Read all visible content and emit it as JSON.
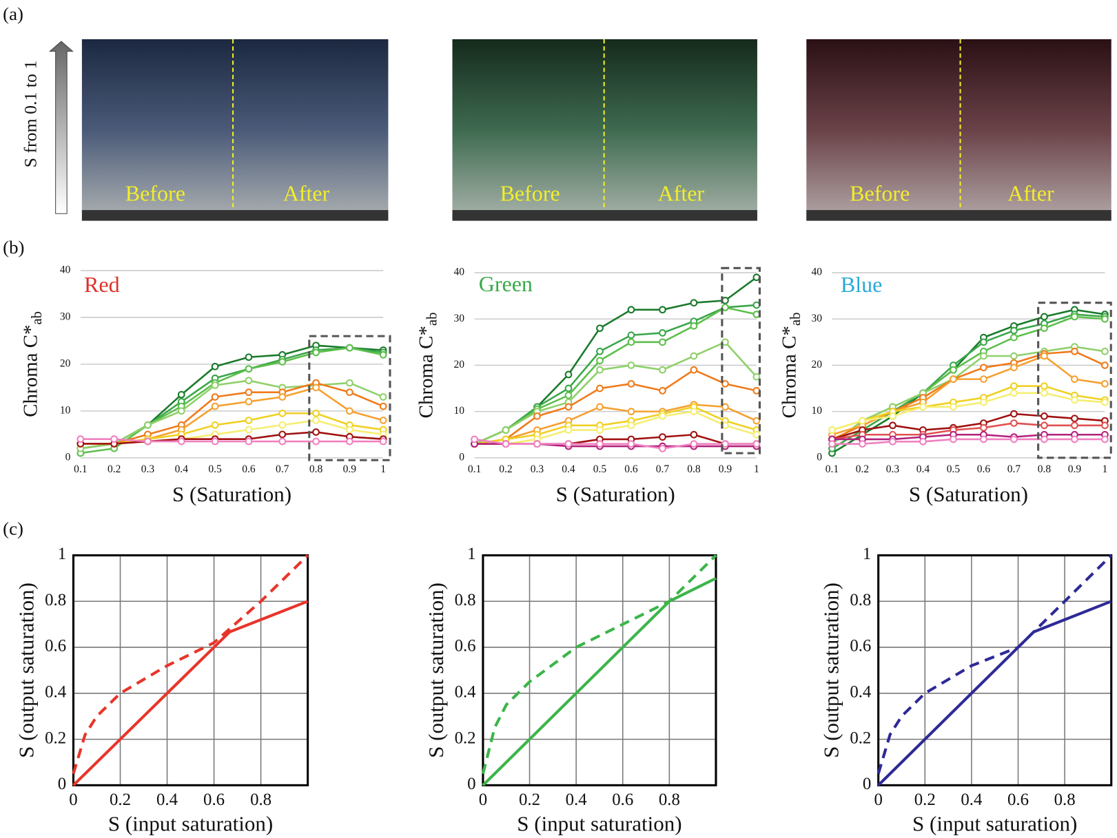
{
  "panel_labels": [
    "(a)",
    "(b)",
    "(c)"
  ],
  "arrow_label": "S from 0.1 to 1",
  "photos": [
    {
      "before": "Before",
      "after": "After"
    },
    {
      "before": "Before",
      "after": "After"
    },
    {
      "before": "Before",
      "after": "After"
    }
  ],
  "chart_data": [
    {
      "type": "line",
      "title": "Red",
      "title_color": "#e0302a",
      "xlabel": "S (Saturation)",
      "ylabel": "Chroma C*",
      "ylabel_sub": "ab",
      "x": [
        0.1,
        0.2,
        0.3,
        0.4,
        0.5,
        0.6,
        0.7,
        0.8,
        0.9,
        1
      ],
      "xlim": [
        0.1,
        1
      ],
      "xticks": [
        0.1,
        0.2,
        0.3,
        0.4,
        0.5,
        0.6,
        0.7,
        0.8,
        0.9,
        1
      ],
      "ylim": [
        0,
        40
      ],
      "yticks": [
        0,
        10,
        20,
        30,
        40
      ],
      "grid": "y",
      "markers": true,
      "highlight": {
        "x": [
          0.78,
          1.02
        ],
        "y": [
          -0.5,
          26
        ]
      },
      "series": [
        {
          "color": "#1a7a2a",
          "values": [
            2,
            3,
            7,
            13.5,
            19.5,
            21.5,
            22,
            24,
            23.5,
            23
          ]
        },
        {
          "color": "#3aa64a",
          "values": [
            2,
            3,
            7,
            12,
            17,
            19,
            21,
            23,
            23.5,
            22.5
          ]
        },
        {
          "color": "#5cbf4a",
          "values": [
            1,
            2,
            7,
            11,
            16,
            19,
            20.5,
            22.5,
            23.5,
            22
          ]
        },
        {
          "color": "#8fd06a",
          "values": [
            2,
            3,
            7,
            10,
            15.5,
            16.5,
            15,
            15.5,
            16,
            13
          ]
        },
        {
          "color": "#f07a1a",
          "values": [
            3,
            3,
            5,
            7,
            13,
            14,
            14,
            16,
            14,
            11
          ]
        },
        {
          "color": "#f5a030",
          "values": [
            3,
            3,
            4,
            6,
            11,
            12,
            13,
            15,
            10,
            8
          ]
        },
        {
          "color": "#f0d020",
          "values": [
            3,
            3,
            4,
            5,
            7,
            8,
            9.5,
            9.5,
            7,
            6
          ]
        },
        {
          "color": "#f5ee70",
          "values": [
            3,
            3,
            3.5,
            4,
            5,
            6,
            7,
            8,
            6,
            5
          ]
        },
        {
          "color": "#a01010",
          "values": [
            3,
            3,
            3.5,
            4,
            4,
            4,
            5,
            5.5,
            4.5,
            4
          ]
        },
        {
          "color": "#f080c0",
          "values": [
            4,
            4,
            3.5,
            3.5,
            3.5,
            3.5,
            3.5,
            3.5,
            3.5,
            3.5
          ]
        }
      ]
    },
    {
      "type": "line",
      "title": "Green",
      "title_color": "#3aaa4a",
      "xlabel": "S (Saturation)",
      "ylabel": "Chroma C*",
      "ylabel_sub": "ab",
      "x": [
        0.1,
        0.2,
        0.3,
        0.4,
        0.5,
        0.6,
        0.7,
        0.8,
        0.9,
        1
      ],
      "xlim": [
        0.1,
        1
      ],
      "xticks": [
        0.1,
        0.2,
        0.3,
        0.4,
        0.5,
        0.6,
        0.7,
        0.8,
        0.9,
        1
      ],
      "ylim": [
        0,
        40
      ],
      "yticks": [
        0,
        10,
        20,
        30,
        40
      ],
      "grid": "y",
      "markers": true,
      "highlight": {
        "x": [
          0.89,
          1.01
        ],
        "y": [
          1,
          41
        ]
      },
      "series": [
        {
          "color": "#1a7a2a",
          "values": [
            3,
            6,
            11,
            18,
            28,
            32,
            32,
            33.5,
            34,
            39
          ]
        },
        {
          "color": "#3aa64a",
          "values": [
            3,
            6,
            11,
            15,
            23,
            26.5,
            27,
            29.5,
            32.5,
            33
          ]
        },
        {
          "color": "#5cbf4a",
          "values": [
            3,
            6,
            10.5,
            13.5,
            21,
            25,
            25,
            28.5,
            32.5,
            31
          ]
        },
        {
          "color": "#8fd06a",
          "values": [
            3,
            6,
            10,
            12,
            19,
            20,
            19,
            22,
            25,
            17.5
          ]
        },
        {
          "color": "#f07a1a",
          "values": [
            3,
            4,
            9,
            11,
            15,
            16,
            14.5,
            19,
            16,
            14.5
          ]
        },
        {
          "color": "#f5a030",
          "values": [
            3,
            4,
            6,
            8,
            11,
            10,
            10,
            11.5,
            11,
            8
          ]
        },
        {
          "color": "#f0d020",
          "values": [
            3,
            4,
            5,
            7,
            7,
            8,
            9.5,
            11,
            8,
            6
          ]
        },
        {
          "color": "#f5ee70",
          "values": [
            3,
            3,
            4,
            6,
            6,
            7,
            9,
            10,
            7,
            5
          ]
        },
        {
          "color": "#a01010",
          "values": [
            3,
            3,
            3,
            3,
            4,
            4,
            4.5,
            5,
            3,
            3
          ]
        },
        {
          "color": "#b0207a",
          "values": [
            3,
            3,
            3,
            2.5,
            2.5,
            2.5,
            2.5,
            2.5,
            2.5,
            2.5
          ]
        },
        {
          "color": "#f080c0",
          "values": [
            4,
            3,
            3,
            3,
            3,
            3,
            2,
            3,
            3,
            3
          ]
        }
      ]
    },
    {
      "type": "line",
      "title": "Blue",
      "title_color": "#2aa8d8",
      "xlabel": "S (Saturation)",
      "ylabel": "Chroma C*",
      "ylabel_sub": "ab",
      "x": [
        0.1,
        0.2,
        0.3,
        0.4,
        0.5,
        0.6,
        0.7,
        0.8,
        0.9,
        1
      ],
      "xlim": [
        0.1,
        1
      ],
      "xticks": [
        0.1,
        0.2,
        0.3,
        0.4,
        0.5,
        0.6,
        0.7,
        0.8,
        0.9,
        1
      ],
      "ylim": [
        0,
        40
      ],
      "yticks": [
        0,
        10,
        20,
        30,
        40
      ],
      "grid": "y",
      "markers": true,
      "highlight": {
        "x": [
          0.78,
          1.02
        ],
        "y": [
          0,
          33.5
        ]
      },
      "series": [
        {
          "color": "#1a7a2a",
          "values": [
            1,
            5,
            9,
            14,
            19,
            26,
            28.5,
            30.5,
            32,
            31
          ]
        },
        {
          "color": "#3aa64a",
          "values": [
            2,
            6,
            10,
            14,
            20,
            25,
            27.5,
            29,
            31,
            30.5
          ]
        },
        {
          "color": "#5cbf4a",
          "values": [
            3,
            8,
            11,
            14,
            19,
            23,
            26,
            28,
            30.5,
            30
          ]
        },
        {
          "color": "#8fd06a",
          "values": [
            3,
            8,
            11,
            14,
            17,
            22,
            22,
            23,
            24,
            23
          ]
        },
        {
          "color": "#f07a1a",
          "values": [
            4,
            7,
            10,
            13,
            17,
            19.5,
            20.5,
            22.5,
            23,
            20
          ]
        },
        {
          "color": "#f5a030",
          "values": [
            5,
            7,
            10,
            12,
            17,
            17,
            19.5,
            22,
            17,
            16
          ]
        },
        {
          "color": "#f0d020",
          "values": [
            6,
            8,
            10,
            11,
            12,
            13,
            15.5,
            15.5,
            13.5,
            12.5
          ]
        },
        {
          "color": "#f5ee70",
          "values": [
            6,
            8,
            9,
            11,
            11,
            12,
            14,
            14,
            12.5,
            12
          ]
        },
        {
          "color": "#a01010",
          "values": [
            4,
            6,
            7,
            6,
            6.5,
            7.5,
            9.5,
            9,
            8.5,
            8
          ]
        },
        {
          "color": "#e05050",
          "values": [
            4,
            5,
            5,
            5,
            6,
            6.5,
            7.5,
            7,
            7,
            7
          ]
        },
        {
          "color": "#b0207a",
          "values": [
            4,
            4,
            4,
            4.5,
            5,
            5,
            4.5,
            5,
            5,
            5
          ]
        },
        {
          "color": "#f080c0",
          "values": [
            3,
            3,
            3.5,
            3.5,
            4,
            4,
            4,
            4,
            4,
            4
          ]
        }
      ]
    },
    {
      "type": "line",
      "xlabel": "S (input saturation)",
      "ylabel": "S (output saturation)",
      "xlim": [
        0,
        1
      ],
      "xticks": [
        0,
        0.2,
        0.4,
        0.6,
        0.8
      ],
      "ylim": [
        0,
        1
      ],
      "yticks": [
        0,
        0.2,
        0.4,
        0.6,
        0.8,
        1
      ],
      "grid": "xy",
      "frame": true,
      "series": [
        {
          "color": "#e8352a",
          "style": "solid",
          "x": [
            0,
            0.667,
            1
          ],
          "values": [
            0,
            0.667,
            0.8
          ]
        },
        {
          "color": "#e8352a",
          "style": "dashed",
          "x": [
            0,
            0.05,
            0.1,
            0.2,
            0.4,
            0.6,
            0.8,
            1
          ],
          "values": [
            0.05,
            0.22,
            0.3,
            0.4,
            0.52,
            0.62,
            0.8,
            1
          ]
        }
      ]
    },
    {
      "type": "line",
      "xlabel": "S (input saturation)",
      "ylabel": "S (output saturation)",
      "xlim": [
        0,
        1
      ],
      "xticks": [
        0,
        0.2,
        0.4,
        0.6,
        0.8
      ],
      "ylim": [
        0,
        1
      ],
      "yticks": [
        0,
        0.2,
        0.4,
        0.6,
        0.8,
        1
      ],
      "grid": "xy",
      "frame": true,
      "series": [
        {
          "color": "#3cb54a",
          "style": "solid",
          "x": [
            0,
            0.8,
            1
          ],
          "values": [
            0,
            0.8,
            0.9
          ]
        },
        {
          "color": "#3cb54a",
          "style": "dashed",
          "x": [
            0,
            0.05,
            0.1,
            0.2,
            0.4,
            0.6,
            0.8,
            1
          ],
          "values": [
            0.05,
            0.25,
            0.35,
            0.45,
            0.6,
            0.7,
            0.8,
            1
          ]
        }
      ]
    },
    {
      "type": "line",
      "xlabel": "S (input saturation)",
      "ylabel": "S (output saturation)",
      "xlim": [
        0,
        1
      ],
      "xticks": [
        0,
        0.2,
        0.4,
        0.6,
        0.8
      ],
      "ylim": [
        0,
        1
      ],
      "yticks": [
        0,
        0.2,
        0.4,
        0.6,
        0.8,
        1
      ],
      "grid": "xy",
      "frame": true,
      "series": [
        {
          "color": "#2e2a96",
          "style": "solid",
          "x": [
            0,
            0.667,
            1
          ],
          "values": [
            0,
            0.667,
            0.8
          ]
        },
        {
          "color": "#2e2a96",
          "style": "dashed",
          "x": [
            0,
            0.05,
            0.1,
            0.2,
            0.4,
            0.6,
            0.8,
            1
          ],
          "values": [
            0.05,
            0.22,
            0.3,
            0.4,
            0.52,
            0.6,
            0.8,
            1
          ]
        }
      ]
    }
  ]
}
